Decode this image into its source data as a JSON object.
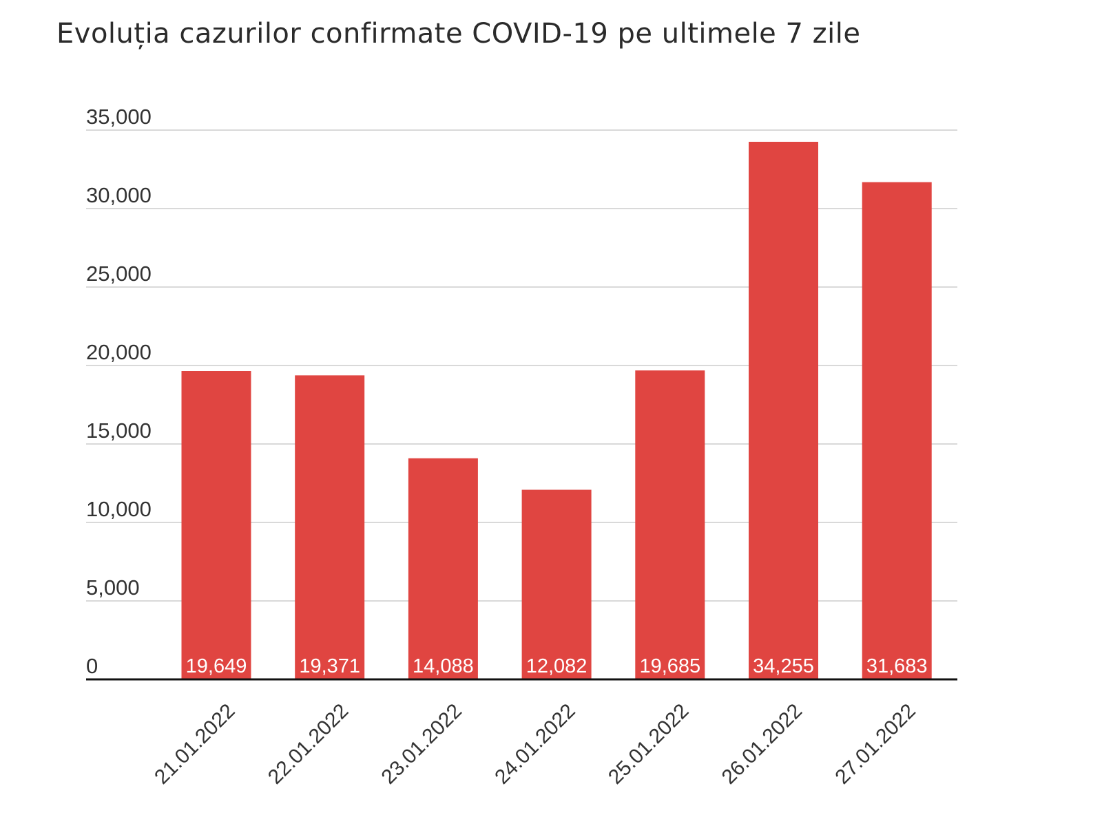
{
  "title": "Evoluția cazurilor confirmate COVID-19 pe ultimele 7 zile",
  "colors": {
    "bar": "#e04541",
    "grid": "#d9d9d9",
    "axis": "#111111",
    "data_label": "#ffffff"
  },
  "chart_data": {
    "type": "bar",
    "title": "Evoluția cazurilor confirmate COVID-19 pe ultimele 7 zile",
    "xlabel": "",
    "ylabel": "",
    "categories": [
      "21.01.2022",
      "22.01.2022",
      "23.01.2022",
      "24.01.2022",
      "25.01.2022",
      "26.01.2022",
      "27.01.2022"
    ],
    "values": [
      19649,
      19371,
      14088,
      12082,
      19685,
      34255,
      31683
    ],
    "data_labels": [
      "19,649",
      "19,371",
      "14,088",
      "12,082",
      "19,685",
      "34,255",
      "31,683"
    ],
    "y_ticks": [
      0,
      5000,
      10000,
      15000,
      20000,
      25000,
      30000,
      35000
    ],
    "y_tick_labels": [
      "0",
      "5,000",
      "10,000",
      "15,000",
      "20,000",
      "25,000",
      "30,000",
      "35,000"
    ],
    "ylim": [
      0,
      35000
    ],
    "grid": true,
    "legend": "none"
  }
}
